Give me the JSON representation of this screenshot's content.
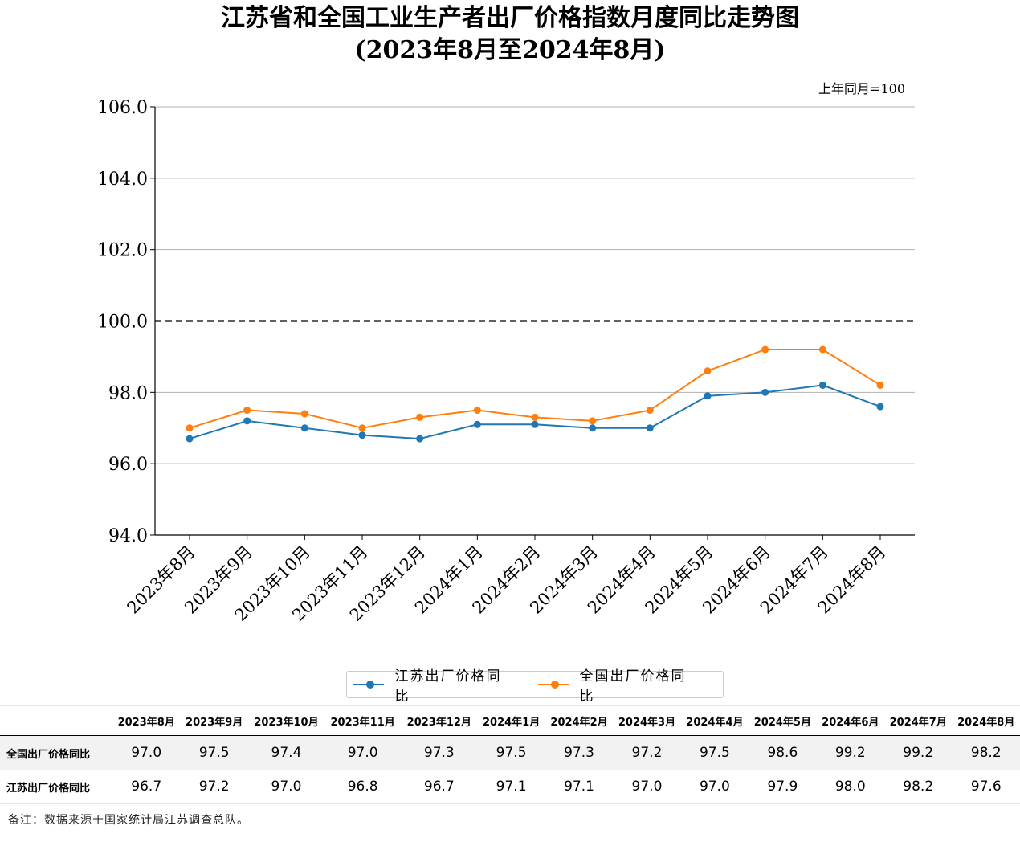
{
  "title": "江苏省和全国工业生产者出厂价格指数月度同比走势图",
  "subtitle": "(2023年8月至2024年8月)",
  "note": "备注：数据来源于国家统计局江苏调查总队。",
  "chart_data": {
    "type": "line",
    "title": "江苏省和全国工业生产者出厂价格指数月度同比走势图",
    "subtitle": "(2023年8月至2024年8月)",
    "unit_label": "上年同月=100",
    "categories": [
      "2023年8月",
      "2023年9月",
      "2023年10月",
      "2023年11月",
      "2023年12月",
      "2024年1月",
      "2024年2月",
      "2024年3月",
      "2024年4月",
      "2024年5月",
      "2024年6月",
      "2024年7月",
      "2024年8月"
    ],
    "y_ticks": [
      "94.0",
      "96.0",
      "98.0",
      "100.0",
      "102.0",
      "104.0",
      "106.0"
    ],
    "ylim": [
      94,
      106
    ],
    "reference_line": 100,
    "grid": "horizontal",
    "legend_position": "bottom-center",
    "series": [
      {
        "name": "江苏出厂价格同比",
        "color": "#1f77b4",
        "values": [
          96.7,
          97.2,
          97.0,
          96.8,
          96.7,
          97.1,
          97.1,
          97.0,
          97.0,
          97.9,
          98.0,
          98.2,
          97.6
        ]
      },
      {
        "name": "全国出厂价格同比",
        "color": "#ff7f0e",
        "values": [
          97.0,
          97.5,
          97.4,
          97.0,
          97.3,
          97.5,
          97.3,
          97.2,
          97.5,
          98.6,
          99.2,
          99.2,
          98.2
        ]
      }
    ]
  },
  "table": {
    "headers": [
      "2023年8月",
      "2023年9月",
      "2023年10月",
      "2023年11月",
      "2023年12月",
      "2024年1月",
      "2024年2月",
      "2024年3月",
      "2024年4月",
      "2024年5月",
      "2024年6月",
      "2024年7月",
      "2024年8月"
    ],
    "rows": [
      {
        "label": "全国出厂价格同比",
        "values": [
          "97.0",
          "97.5",
          "97.4",
          "97.0",
          "97.3",
          "97.5",
          "97.3",
          "97.2",
          "97.5",
          "98.6",
          "99.2",
          "99.2",
          "98.2"
        ]
      },
      {
        "label": "江苏出厂价格同比",
        "values": [
          "96.7",
          "97.2",
          "97.0",
          "96.8",
          "96.7",
          "97.1",
          "97.1",
          "97.0",
          "97.0",
          "97.9",
          "98.0",
          "98.2",
          "97.6"
        ]
      }
    ]
  }
}
